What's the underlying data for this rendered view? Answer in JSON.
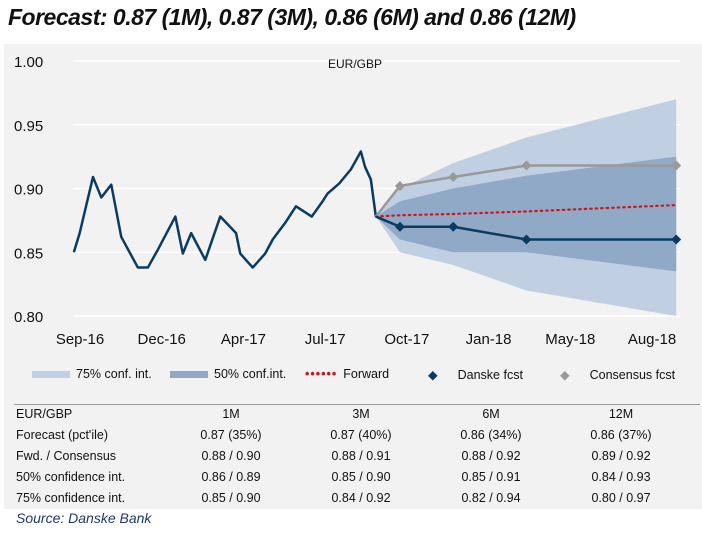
{
  "title": "Forecast: 0.87 (1M), 0.87 (3M), 0.86 (6M) and 0.86 (12M)",
  "source": "Source: Danske Bank",
  "colors": {
    "history": "#0b3a63",
    "band75": "#c0d0e2",
    "band50": "#8fa9c6",
    "forward": "#d0141c",
    "danske": "#0b3a63",
    "consensus": "#999999",
    "background": "#f2f2f2"
  },
  "chart_data": {
    "type": "line",
    "title": "EUR/GBP",
    "ylim": [
      0.8,
      1.0
    ],
    "yticks": [
      "1.00",
      "0.95",
      "0.90",
      "0.85",
      "0.80"
    ],
    "xticks": [
      "Sep-16",
      "Dec-16",
      "Apr-17",
      "Jul-17",
      "Oct-17",
      "Jan-18",
      "May-18",
      "Aug-18"
    ],
    "grid": true,
    "legend_placement": "bottom",
    "legend": [
      "75% conf. int.",
      "50% conf.int.",
      "Forward",
      "Danske fcst",
      "Consensus fcst"
    ],
    "history": {
      "x": [
        "2016-09-02",
        "2016-09-09",
        "2016-09-25",
        "2016-10-05",
        "2016-10-17",
        "2016-10-29",
        "2016-11-18",
        "2016-11-30",
        "2016-12-12",
        "2017-01-02",
        "2017-01-11",
        "2017-01-21",
        "2017-02-07",
        "2017-02-25",
        "2017-03-16",
        "2017-03-21",
        "2017-04-05",
        "2017-04-20",
        "2017-04-29",
        "2017-05-14",
        "2017-05-27",
        "2017-06-15",
        "2017-06-27",
        "2017-07-04",
        "2017-07-18",
        "2017-08-01",
        "2017-08-13",
        "2017-08-18",
        "2017-08-25",
        "2017-08-31"
      ],
      "y": [
        0.85,
        0.865,
        0.909,
        0.893,
        0.903,
        0.862,
        0.838,
        0.838,
        0.852,
        0.878,
        0.849,
        0.865,
        0.844,
        0.878,
        0.865,
        0.849,
        0.838,
        0.849,
        0.86,
        0.873,
        0.886,
        0.878,
        0.889,
        0.896,
        0.904,
        0.915,
        0.929,
        0.917,
        0.907,
        0.878
      ]
    },
    "forecast_x": [
      "2017-08-31",
      "2017-09-29",
      "2017-12-02",
      "2018-02-28",
      "2018-08-27"
    ],
    "danske": [
      0.878,
      0.87,
      0.87,
      0.86,
      0.86
    ],
    "consensus": [
      0.878,
      0.902,
      0.909,
      0.918,
      0.918
    ],
    "forward": [
      0.878,
      0.879,
      0.88,
      0.882,
      0.887
    ],
    "band50_low": [
      0.878,
      0.86,
      0.85,
      0.85,
      0.835
    ],
    "band50_high": [
      0.878,
      0.89,
      0.9,
      0.91,
      0.925
    ],
    "band75_low": [
      0.878,
      0.85,
      0.84,
      0.82,
      0.8
    ],
    "band75_high": [
      0.878,
      0.9,
      0.92,
      0.94,
      0.97
    ]
  },
  "table": {
    "header": [
      "EUR/GBP",
      "1M",
      "3M",
      "6M",
      "12M"
    ],
    "rows": [
      [
        "Forecast (pct'ile)",
        "0.87 (35%)",
        "0.87 (40%)",
        "0.86 (34%)",
        "0.86 (37%)"
      ],
      [
        "Fwd. / Consensus",
        "0.88 / 0.90",
        "0.88 / 0.91",
        "0.88 / 0.92",
        "0.89 / 0.92"
      ],
      [
        "50% confidence int.",
        "0.86 / 0.89",
        "0.85 / 0.90",
        "0.85 / 0.91",
        "0.84 / 0.93"
      ],
      [
        "75% confidence int.",
        "0.85 / 0.90",
        "0.84 / 0.92",
        "0.82 / 0.94",
        "0.80 / 0.97"
      ]
    ]
  }
}
